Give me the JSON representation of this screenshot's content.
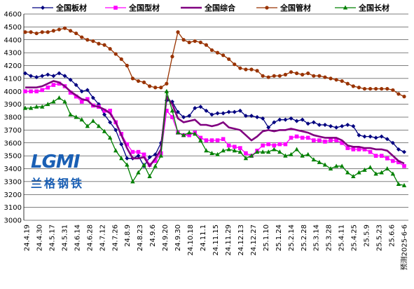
{
  "chart_data": {
    "type": "line",
    "title": "",
    "xlabel": "",
    "ylabel": "",
    "ylim": [
      3000,
      4600
    ],
    "yticks": [
      3000,
      3100,
      3200,
      3300,
      3400,
      3500,
      3600,
      3700,
      3800,
      3900,
      4000,
      4100,
      4200,
      4300,
      4400,
      4500,
      4600
    ],
    "x_tick_labels": [
      "24.4.19",
      "24.4.30",
      "24.5.17",
      "24.5.31",
      "24.6.14",
      "24.6.28",
      "24.7.12",
      "24.7.26",
      "24.8.9",
      "24.8.23",
      "24.9.6",
      "24.9.20",
      "24.9.30",
      "24.10.18",
      "24.11.1",
      "24.11.15",
      "24.11.29",
      "24.12.13",
      "24.12.27",
      "25.1.10",
      "25.1.24",
      "25.2.14",
      "25.2.28",
      "25.3.14",
      "25.3.28",
      "25.4.11",
      "25.4.25",
      "25.5.9",
      "25.5.23",
      "25.6.6",
      "预测2025-6-6"
    ],
    "legend_position": "top",
    "series": [
      {
        "name": "全国板材",
        "color": "#000080",
        "marker": "diamond",
        "values": [
          4140,
          4120,
          4110,
          4120,
          4130,
          4120,
          4140,
          4120,
          4090,
          4050,
          4000,
          4010,
          3950,
          3900,
          3820,
          3760,
          3700,
          3590,
          3480,
          3480,
          3500,
          3420,
          3490,
          3510,
          3600,
          3930,
          3920,
          3840,
          3800,
          3810,
          3870,
          3880,
          3850,
          3820,
          3830,
          3830,
          3840,
          3840,
          3850,
          3810,
          3810,
          3800,
          3790,
          3720,
          3760,
          3780,
          3780,
          3790,
          3770,
          3780,
          3750,
          3760,
          3740,
          3740,
          3730,
          3720,
          3730,
          3740,
          3730,
          3660,
          3650,
          3650,
          3640,
          3650,
          3630,
          3600,
          3550,
          3530
        ]
      },
      {
        "name": "全国型材",
        "color": "#ff00ff",
        "marker": "square",
        "values": [
          4000,
          4000,
          4000,
          4010,
          4030,
          4050,
          4060,
          4040,
          3990,
          3960,
          3920,
          3940,
          3890,
          3880,
          3850,
          3850,
          3760,
          3670,
          3590,
          3530,
          3530,
          3510,
          3430,
          3460,
          3520,
          3850,
          3800,
          3680,
          3660,
          3660,
          3680,
          3640,
          3620,
          3620,
          3620,
          3630,
          3580,
          3570,
          3560,
          3520,
          3500,
          3540,
          3580,
          3590,
          3580,
          3590,
          3590,
          3640,
          3650,
          3640,
          3640,
          3620,
          3620,
          3610,
          3620,
          3620,
          3600,
          3560,
          3550,
          3550,
          3550,
          3530,
          3500,
          3500,
          3480,
          3460,
          3450,
          3420
        ]
      },
      {
        "name": "全国综合",
        "color": "#800080",
        "marker": "none",
        "values": [
          4030,
          4030,
          4030,
          4040,
          4060,
          4080,
          4070,
          4040,
          4000,
          3970,
          3940,
          3930,
          3890,
          3880,
          3860,
          3830,
          3760,
          3660,
          3560,
          3480,
          3480,
          3490,
          3420,
          3480,
          3550,
          3960,
          3900,
          3790,
          3760,
          3770,
          3780,
          3740,
          3740,
          3730,
          3740,
          3760,
          3720,
          3710,
          3700,
          3660,
          3620,
          3650,
          3690,
          3700,
          3690,
          3700,
          3700,
          3710,
          3700,
          3690,
          3680,
          3660,
          3650,
          3640,
          3640,
          3640,
          3620,
          3580,
          3570,
          3570,
          3560,
          3560,
          3550,
          3550,
          3540,
          3500,
          3460,
          3440
        ]
      },
      {
        "name": "全国管材",
        "color": "#993300",
        "marker": "circle",
        "values": [
          4460,
          4460,
          4450,
          4460,
          4460,
          4470,
          4480,
          4490,
          4470,
          4450,
          4420,
          4400,
          4390,
          4370,
          4360,
          4330,
          4290,
          4250,
          4200,
          4100,
          4080,
          4070,
          4040,
          4030,
          4030,
          4060,
          4270,
          4460,
          4400,
          4380,
          4390,
          4380,
          4360,
          4320,
          4300,
          4280,
          4250,
          4210,
          4180,
          4170,
          4170,
          4160,
          4120,
          4110,
          4120,
          4120,
          4130,
          4150,
          4140,
          4130,
          4140,
          4120,
          4120,
          4110,
          4100,
          4090,
          4080,
          4060,
          4040,
          4030,
          4020,
          4020,
          4020,
          4020,
          4020,
          4010,
          3980,
          3960
        ]
      },
      {
        "name": "全国长材",
        "color": "#008000",
        "marker": "triangle",
        "values": [
          3870,
          3870,
          3880,
          3880,
          3900,
          3920,
          3950,
          3920,
          3820,
          3800,
          3780,
          3730,
          3770,
          3730,
          3690,
          3640,
          3540,
          3480,
          3430,
          3300,
          3370,
          3430,
          3340,
          3420,
          3500,
          4000,
          3850,
          3680,
          3660,
          3680,
          3670,
          3620,
          3540,
          3520,
          3510,
          3540,
          3550,
          3540,
          3530,
          3480,
          3500,
          3530,
          3530,
          3530,
          3550,
          3530,
          3500,
          3510,
          3550,
          3500,
          3510,
          3470,
          3450,
          3430,
          3400,
          3420,
          3420,
          3370,
          3340,
          3370,
          3390,
          3410,
          3360,
          3370,
          3400,
          3360,
          3280,
          3270
        ]
      }
    ]
  },
  "watermark": {
    "logo_text": "LGMI",
    "chinese_text": "兰格钢铁"
  }
}
